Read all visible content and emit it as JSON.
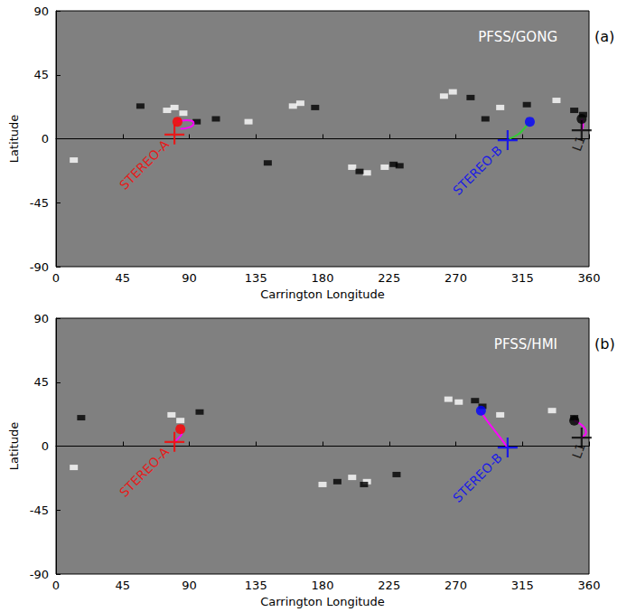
{
  "chart_data": [
    {
      "type": "scatter",
      "title": "PFSS/GONG",
      "panel_label": "(a)",
      "x_label": "Carrington Longitude",
      "y_label": "Latitude",
      "xlim": [
        0,
        360
      ],
      "xticks": [
        0,
        45,
        90,
        135,
        180,
        225,
        270,
        315,
        360
      ],
      "ylim": [
        -90,
        90
      ],
      "yticks": [
        -90,
        -45,
        0,
        45,
        90
      ],
      "grid": false,
      "magnetogram": {
        "positive": [
          [
            80,
            22
          ],
          [
            86,
            18
          ],
          [
            75,
            20
          ],
          [
            165,
            25
          ],
          [
            160,
            23
          ],
          [
            262,
            30
          ],
          [
            268,
            33
          ],
          [
            300,
            22
          ],
          [
            338,
            27
          ],
          [
            12,
            -15
          ],
          [
            222,
            -20
          ],
          [
            210,
            -24
          ],
          [
            200,
            -20
          ],
          [
            130,
            12
          ]
        ],
        "negative": [
          [
            57,
            23
          ],
          [
            95,
            12
          ],
          [
            108,
            14
          ],
          [
            175,
            22
          ],
          [
            280,
            29
          ],
          [
            318,
            24
          ],
          [
            350,
            20
          ],
          [
            356,
            17
          ],
          [
            143,
            -17
          ],
          [
            205,
            -23
          ],
          [
            228,
            -18
          ],
          [
            232,
            -19
          ],
          [
            290,
            14
          ]
        ]
      },
      "spacecraft": [
        {
          "name": "STEREO-A",
          "color": "#ff0000",
          "position": [
            80,
            3
          ],
          "footpoint": [
            82,
            12
          ],
          "field_line": {
            "color": "#ff00ff",
            "points": [
              [
                82,
                12
              ],
              [
                88,
                13
              ],
              [
                93,
                11
              ],
              [
                90,
                8
              ],
              [
                84,
                7
              ]
            ]
          }
        },
        {
          "name": "STEREO-B",
          "color": "#0000ff",
          "position": [
            305,
            -1
          ],
          "footpoint": [
            320,
            12
          ],
          "field_line": {
            "color": "#33cc33",
            "points": [
              [
                306,
                0
              ],
              [
                312,
                3
              ],
              [
                316,
                7
              ],
              [
                320,
                12
              ]
            ]
          }
        },
        {
          "name": "L1",
          "color": "#000000",
          "position": [
            355,
            6
          ],
          "footpoint": [
            355,
            14
          ],
          "field_line": {
            "color": "#ff00ff",
            "points": [
              [
                355,
                6
              ],
              [
                356,
                10
              ],
              [
                355,
                14
              ]
            ]
          }
        }
      ]
    },
    {
      "type": "scatter",
      "title": "PFSS/HMI",
      "panel_label": "(b)",
      "x_label": "Carrington Longitude",
      "y_label": "Latitude",
      "xlim": [
        0,
        360
      ],
      "xticks": [
        0,
        45,
        90,
        135,
        180,
        225,
        270,
        315,
        360
      ],
      "ylim": [
        -90,
        90
      ],
      "yticks": [
        -90,
        -45,
        0,
        45,
        90
      ],
      "grid": false,
      "magnetogram": {
        "positive": [
          [
            78,
            22
          ],
          [
            84,
            18
          ],
          [
            272,
            31
          ],
          [
            265,
            33
          ],
          [
            300,
            22
          ],
          [
            335,
            25
          ],
          [
            12,
            -15
          ],
          [
            210,
            -25
          ],
          [
            200,
            -22
          ],
          [
            180,
            -27
          ]
        ],
        "negative": [
          [
            17,
            20
          ],
          [
            97,
            24
          ],
          [
            283,
            32
          ],
          [
            288,
            28
          ],
          [
            350,
            20
          ],
          [
            208,
            -27
          ],
          [
            190,
            -25
          ],
          [
            230,
            -20
          ]
        ]
      },
      "spacecraft": [
        {
          "name": "STEREO-A",
          "color": "#ff0000",
          "position": [
            80,
            3
          ],
          "footpoint": [
            84,
            12
          ],
          "field_line": {
            "color": "#ff00ff",
            "points": [
              [
                80,
                3
              ],
              [
                83,
                6
              ],
              [
                85,
                9
              ],
              [
                84,
                12
              ]
            ]
          }
        },
        {
          "name": "STEREO-B",
          "color": "#0000ff",
          "position": [
            305,
            -1
          ],
          "footpoint": [
            287,
            25
          ],
          "field_line": {
            "color": "#ff00ff",
            "points": [
              [
                305,
                -1
              ],
              [
                300,
                6
              ],
              [
                294,
                14
              ],
              [
                289,
                21
              ],
              [
                287,
                25
              ]
            ]
          }
        },
        {
          "name": "L1",
          "color": "#000000",
          "position": [
            355,
            6
          ],
          "footpoint": [
            350,
            18
          ],
          "field_line": {
            "color": "#ff00ff",
            "points": [
              [
                355,
                6
              ],
              [
                358,
                10
              ],
              [
                356,
                14
              ],
              [
                350,
                18
              ]
            ]
          }
        }
      ]
    }
  ]
}
